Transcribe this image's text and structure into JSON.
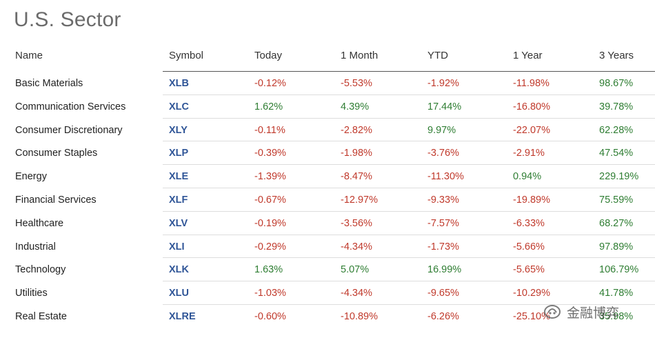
{
  "page_title": "U.S. Sector",
  "headers": {
    "name": "Name",
    "symbol": "Symbol",
    "today": "Today",
    "month": "1 Month",
    "ytd": "YTD",
    "year": "1 Year",
    "three_years": "3 Years"
  },
  "rows": [
    {
      "name": "Basic Materials",
      "symbol": "XLB",
      "today": "-0.12%",
      "month": "-5.53%",
      "ytd": "-1.92%",
      "year": "-11.98%",
      "three_years": "98.67%"
    },
    {
      "name": "Communication Services",
      "symbol": "XLC",
      "today": "1.62%",
      "month": "4.39%",
      "ytd": "17.44%",
      "year": "-16.80%",
      "three_years": "39.78%"
    },
    {
      "name": "Consumer Discretionary",
      "symbol": "XLY",
      "today": "-0.11%",
      "month": "-2.82%",
      "ytd": "9.97%",
      "year": "-22.07%",
      "three_years": "62.28%"
    },
    {
      "name": "Consumer Staples",
      "symbol": "XLP",
      "today": "-0.39%",
      "month": "-1.98%",
      "ytd": "-3.76%",
      "year": "-2.91%",
      "three_years": "47.54%"
    },
    {
      "name": "Energy",
      "symbol": "XLE",
      "today": "-1.39%",
      "month": "-8.47%",
      "ytd": "-11.30%",
      "year": "0.94%",
      "three_years": "229.19%"
    },
    {
      "name": "Financial Services",
      "symbol": "XLF",
      "today": "-0.67%",
      "month": "-12.97%",
      "ytd": "-9.33%",
      "year": "-19.89%",
      "three_years": "75.59%"
    },
    {
      "name": "Healthcare",
      "symbol": "XLV",
      "today": "-0.19%",
      "month": "-3.56%",
      "ytd": "-7.57%",
      "year": "-6.33%",
      "three_years": "68.27%"
    },
    {
      "name": "Industrial",
      "symbol": "XLI",
      "today": "-0.29%",
      "month": "-4.34%",
      "ytd": "-1.73%",
      "year": "-5.66%",
      "three_years": "97.89%"
    },
    {
      "name": "Technology",
      "symbol": "XLK",
      "today": "1.63%",
      "month": "5.07%",
      "ytd": "16.99%",
      "year": "-5.65%",
      "three_years": "106.79%"
    },
    {
      "name": "Utilities",
      "symbol": "XLU",
      "today": "-1.03%",
      "month": "-4.34%",
      "ytd": "-9.65%",
      "year": "-10.29%",
      "three_years": "41.78%"
    },
    {
      "name": "Real Estate",
      "symbol": "XLRE",
      "today": "-0.60%",
      "month": "-10.89%",
      "ytd": "-6.26%",
      "year": "-25.10%",
      "three_years": "35.98%"
    }
  ],
  "colors": {
    "negative": "#c0392b",
    "positive": "#2e7d32",
    "symbol_link": "#2f5597"
  },
  "watermark": {
    "text": "金融博弈",
    "icon": "wechat-official-account-icon"
  }
}
